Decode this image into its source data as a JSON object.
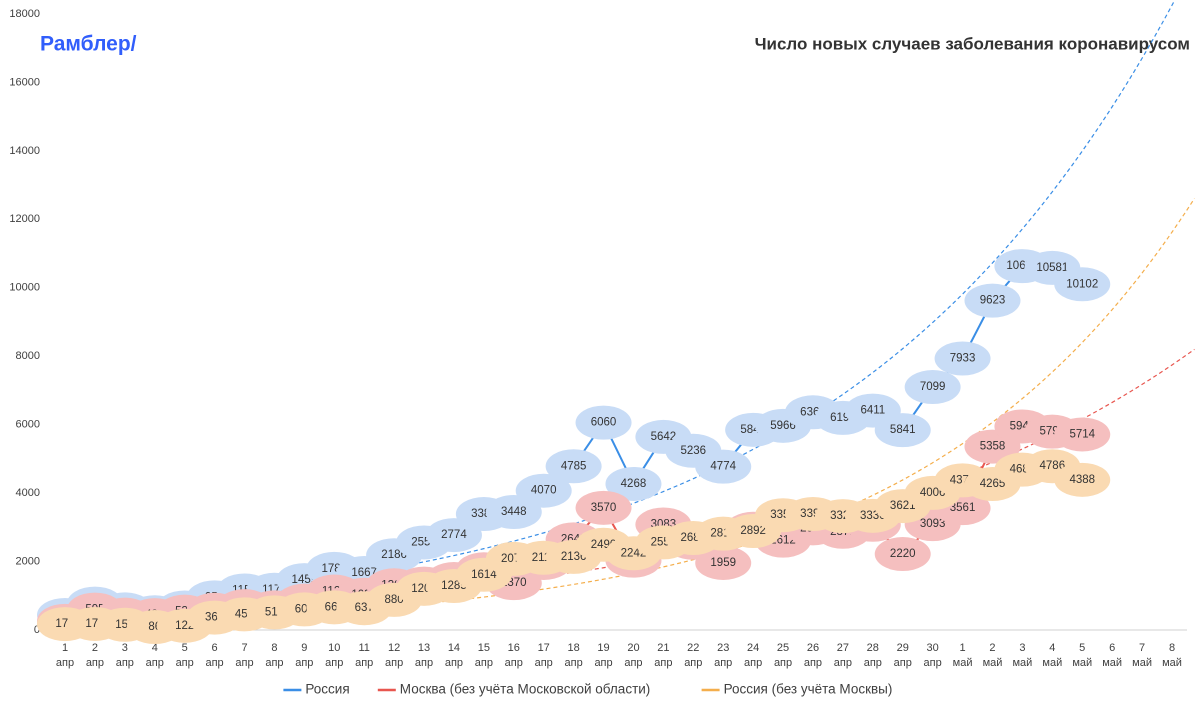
{
  "logo": "Рамблер/",
  "chart_data": {
    "type": "line",
    "title": "Число новых случаев заболевания коронавирусом",
    "categories": [
      [
        "1",
        "апр"
      ],
      [
        "2",
        "апр"
      ],
      [
        "3",
        "апр"
      ],
      [
        "4",
        "апр"
      ],
      [
        "5",
        "апр"
      ],
      [
        "6",
        "апр"
      ],
      [
        "7",
        "апр"
      ],
      [
        "8",
        "апр"
      ],
      [
        "9",
        "апр"
      ],
      [
        "10",
        "апр"
      ],
      [
        "11",
        "апр"
      ],
      [
        "12",
        "апр"
      ],
      [
        "13",
        "апр"
      ],
      [
        "14",
        "апр"
      ],
      [
        "15",
        "апр"
      ],
      [
        "16",
        "апр"
      ],
      [
        "17",
        "апр"
      ],
      [
        "18",
        "апр"
      ],
      [
        "19",
        "апр"
      ],
      [
        "20",
        "апр"
      ],
      [
        "21",
        "апр"
      ],
      [
        "22",
        "апр"
      ],
      [
        "23",
        "апр"
      ],
      [
        "24",
        "апр"
      ],
      [
        "25",
        "апр"
      ],
      [
        "26",
        "апр"
      ],
      [
        "27",
        "апр"
      ],
      [
        "28",
        "апр"
      ],
      [
        "29",
        "апр"
      ],
      [
        "30",
        "апр"
      ],
      [
        "1",
        "май"
      ],
      [
        "2",
        "май"
      ],
      [
        "3",
        "май"
      ],
      [
        "4",
        "май"
      ],
      [
        "5",
        "май"
      ],
      [
        "6",
        "май"
      ],
      [
        "7",
        "май"
      ],
      [
        "8",
        "май"
      ]
    ],
    "series": [
      {
        "name": "Россия",
        "color": "#3a8ee6",
        "label_fill": "#c8dcf6",
        "values": [
          440,
          771,
          601,
          520,
          658,
          954,
          1154,
          1175,
          1459,
          1786,
          1667,
          2186,
          2558,
          2774,
          3388,
          3448,
          4070,
          4785,
          6060,
          4268,
          5642,
          5236,
          4774,
          5849,
          5966,
          6361,
          6198,
          6411,
          5841,
          7099,
          7933,
          9623,
          10633,
          10581,
          10102,
          null,
          null,
          null
        ]
      },
      {
        "name": "Москва (без учёта Московской области)",
        "color": "#e8564f",
        "label_fill": "#f5bfbf",
        "values": [
          267,
          595,
          448,
          434,
          536,
          591,
          697,
          660,
          857,
          1124,
          1030,
          1306,
          1355,
          1489,
          1774,
          1370,
          1959,
          2649,
          3570,
          2026,
          3083,
          2548,
          1959,
          2957,
          2612,
          2971,
          2871,
          3075,
          2220,
          3093,
          3561,
          5358,
          5948,
          5795,
          5714,
          null,
          null,
          null
        ]
      },
      {
        "name": "Россия (без учёта Москвы)",
        "color": "#f4ae4c",
        "label_fill": "#fadab2",
        "values": [
          173,
          176,
          153,
          86,
          122,
          363,
          457,
          515,
          602,
          662,
          637,
          880,
          1203,
          1285,
          1614,
          2078,
          2111,
          2136,
          2490,
          2242,
          2559,
          2688,
          2815,
          2892,
          3354,
          3390,
          3327,
          3336,
          3621,
          4006,
          4372,
          4265,
          4685,
          4786,
          4388,
          null,
          null,
          null
        ]
      }
    ],
    "ylim": [
      0,
      18000
    ],
    "yticks": [
      0,
      2000,
      4000,
      6000,
      8000,
      10000,
      12000,
      14000,
      16000,
      18000
    ],
    "trendline": "exponential",
    "data_labels": true,
    "legend": "bottom"
  }
}
